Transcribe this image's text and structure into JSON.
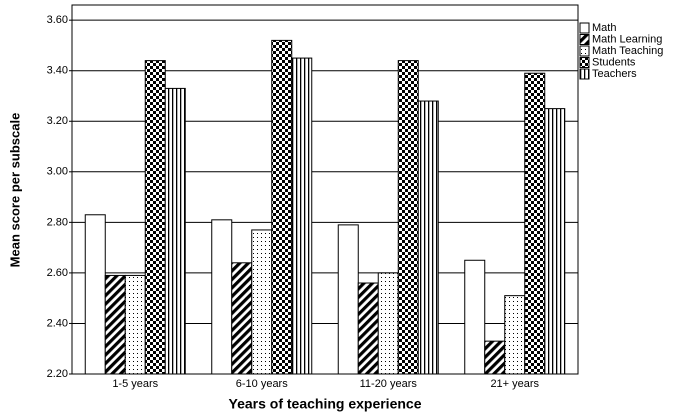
{
  "chart_data": {
    "type": "bar",
    "x_label": "Years of teaching experience",
    "y_label": "Mean score per subscale",
    "categories": [
      "1-5 years",
      "6-10 years",
      "11-20 years",
      "21+ years"
    ],
    "series": [
      {
        "name": "Math",
        "pattern": "none",
        "values": [
          2.83,
          2.81,
          2.79,
          2.65
        ]
      },
      {
        "name": "Math Learning",
        "pattern": "diagonal",
        "values": [
          2.59,
          2.64,
          2.56,
          2.33
        ]
      },
      {
        "name": "Math Teaching",
        "pattern": "dots",
        "values": [
          2.59,
          2.77,
          2.6,
          2.51
        ]
      },
      {
        "name": "Students",
        "pattern": "checker",
        "values": [
          3.44,
          3.52,
          3.44,
          3.39
        ]
      },
      {
        "name": "Teachers",
        "pattern": "vertical",
        "values": [
          3.33,
          3.45,
          3.28,
          3.25
        ]
      }
    ],
    "ylim": [
      2.2,
      3.66
    ],
    "yticks": [
      {
        "value": 2.2,
        "label": "2.20"
      },
      {
        "value": 2.4,
        "label": "2.40"
      },
      {
        "value": 2.6,
        "label": "2.60"
      },
      {
        "value": 2.8,
        "label": "2.80"
      },
      {
        "value": 3,
        "label": "3.00"
      },
      {
        "value": 3.2,
        "label": "3.20"
      },
      {
        "value": 3.4,
        "label": "3.40"
      },
      {
        "value": 3.6,
        "label": "3.60"
      }
    ],
    "grid": true,
    "legend": "right"
  }
}
